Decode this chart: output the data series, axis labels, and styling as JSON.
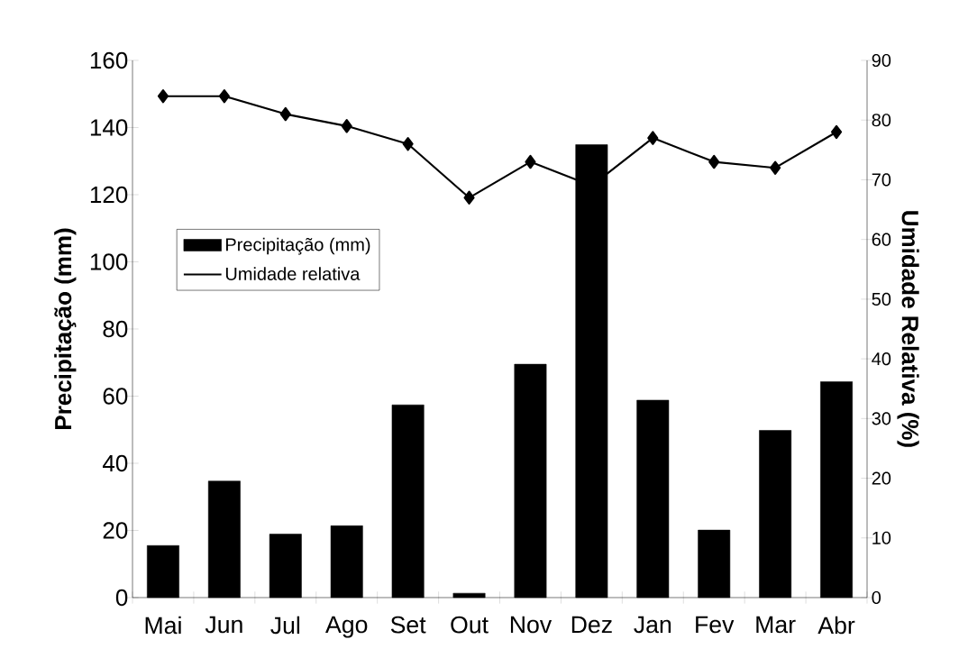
{
  "chart_data": {
    "type": "bar",
    "categories": [
      "Mai",
      "Jun",
      "Jul",
      "Ago",
      "Set",
      "Out",
      "Nov",
      "Dez",
      "Jan",
      "Fev",
      "Mar",
      "Abr"
    ],
    "series": [
      {
        "name": "Precipitação (mm)",
        "color": "#000000",
        "values": [
          15.5,
          34.7,
          18.9,
          21.4,
          57.4,
          1.3,
          69.5,
          134.9,
          58.8,
          20.1,
          49.8,
          64.3
        ]
      },
      {
        "name": "Umidade relativa",
        "type": "line",
        "axis": "y2",
        "color": "#000000",
        "marker": "diamond",
        "line_style": "solid",
        "values": [
          84,
          84,
          81,
          79,
          76,
          67,
          73,
          69,
          77,
          73,
          72,
          78
        ]
      }
    ],
    "ylabel": "Precipitação (mm)",
    "y2label": "Umidade Relativa (%)",
    "ylim": [
      0,
      160
    ],
    "yticks": [
      0,
      20,
      40,
      60,
      80,
      100,
      120,
      140,
      160
    ],
    "y2lim": [
      0,
      90
    ],
    "y2ticks": [
      0,
      10,
      20,
      30,
      40,
      50,
      60,
      70,
      80,
      90
    ],
    "legend": "left",
    "grid": false
  }
}
